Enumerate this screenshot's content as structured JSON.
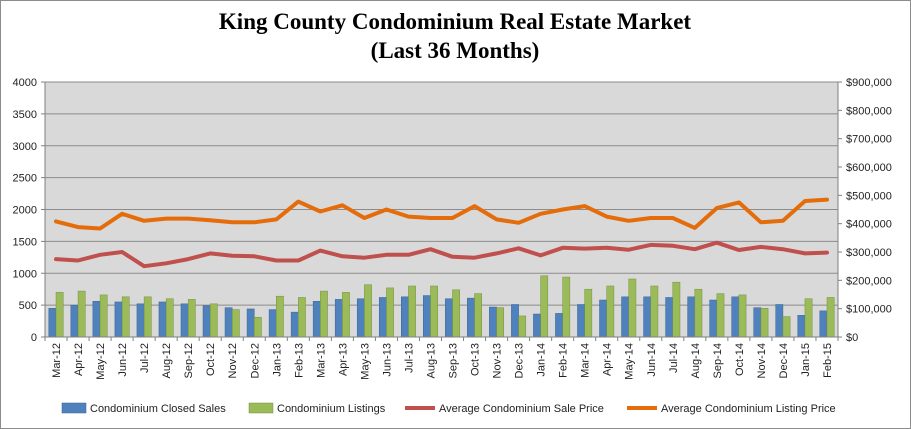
{
  "chart_data": {
    "type": "bar",
    "title": "King County Condominium  Real Estate Market",
    "subtitle": "(Last 36 Months)",
    "categories": [
      "Mar-12",
      "Apr-12",
      "May-12",
      "Jun-12",
      "Jul-12",
      "Aug-12",
      "Sep-12",
      "Oct-12",
      "Nov-12",
      "Dec-12",
      "Jan-13",
      "Feb-13",
      "Mar-13",
      "Apr-13",
      "May-13",
      "Jun-13",
      "Jul-13",
      "Aug-13",
      "Sep-13",
      "Oct-13",
      "Nov-13",
      "Dec-13",
      "Jan-14",
      "Feb-14",
      "Mar-14",
      "Apr-14",
      "May-14",
      "Jun-14",
      "Jul-14",
      "Aug-14",
      "Sep-14",
      "Oct-14",
      "Nov-14",
      "Dec-14",
      "Jan-15",
      "Feb-15"
    ],
    "left_axis": {
      "ylim": [
        0,
        4000
      ],
      "ticks": [
        "0",
        "500",
        "1000",
        "1500",
        "2000",
        "2500",
        "3000",
        "3500",
        "4000"
      ]
    },
    "right_axis": {
      "ylim": [
        0,
        900000
      ],
      "ticks": [
        "$0",
        "$100,000",
        "$200,000",
        "$300,000",
        "$400,000",
        "$500,000",
        "$600,000",
        "$700,000",
        "$800,000",
        "$900,000"
      ]
    },
    "grid": true,
    "legend_position": "bottom",
    "series": [
      {
        "name": "Condominium Closed Sales",
        "kind": "bar",
        "axis": "left",
        "color": "#4f81bd",
        "values": [
          450,
          500,
          560,
          550,
          520,
          550,
          520,
          490,
          460,
          440,
          430,
          390,
          560,
          590,
          600,
          620,
          630,
          650,
          600,
          610,
          470,
          510,
          360,
          370,
          510,
          580,
          630,
          630,
          620,
          630,
          580,
          630,
          460,
          510,
          340,
          410
        ]
      },
      {
        "name": "Condominium Listings",
        "kind": "bar",
        "axis": "left",
        "color": "#9bbb59",
        "values": [
          700,
          720,
          660,
          630,
          630,
          600,
          590,
          520,
          430,
          310,
          640,
          620,
          720,
          700,
          820,
          770,
          800,
          800,
          740,
          680,
          460,
          330,
          960,
          940,
          750,
          800,
          910,
          800,
          860,
          750,
          680,
          660,
          450,
          320,
          600,
          620
        ]
      },
      {
        "name": "Average Condominium Sale Price",
        "kind": "line",
        "axis": "right",
        "color": "#c0504d",
        "values": [
          275000,
          270000,
          290000,
          300000,
          250000,
          260000,
          275000,
          295000,
          287000,
          285000,
          270000,
          270000,
          305000,
          285000,
          280000,
          290000,
          290000,
          310000,
          283000,
          280000,
          295000,
          313000,
          288000,
          315000,
          312000,
          315000,
          308000,
          325000,
          322000,
          310000,
          333000,
          307000,
          318000,
          310000,
          295000,
          298000
        ]
      },
      {
        "name": "Average Condominium Listing Price",
        "kind": "line",
        "axis": "right",
        "color": "#e46c0a",
        "values": [
          408000,
          388000,
          383000,
          435000,
          410000,
          418000,
          418000,
          412000,
          405000,
          405000,
          415000,
          478000,
          443000,
          465000,
          420000,
          450000,
          425000,
          420000,
          420000,
          462000,
          415000,
          403000,
          435000,
          450000,
          462000,
          425000,
          410000,
          420000,
          420000,
          385000,
          455000,
          475000,
          405000,
          410000,
          480000,
          485000
        ]
      }
    ]
  }
}
